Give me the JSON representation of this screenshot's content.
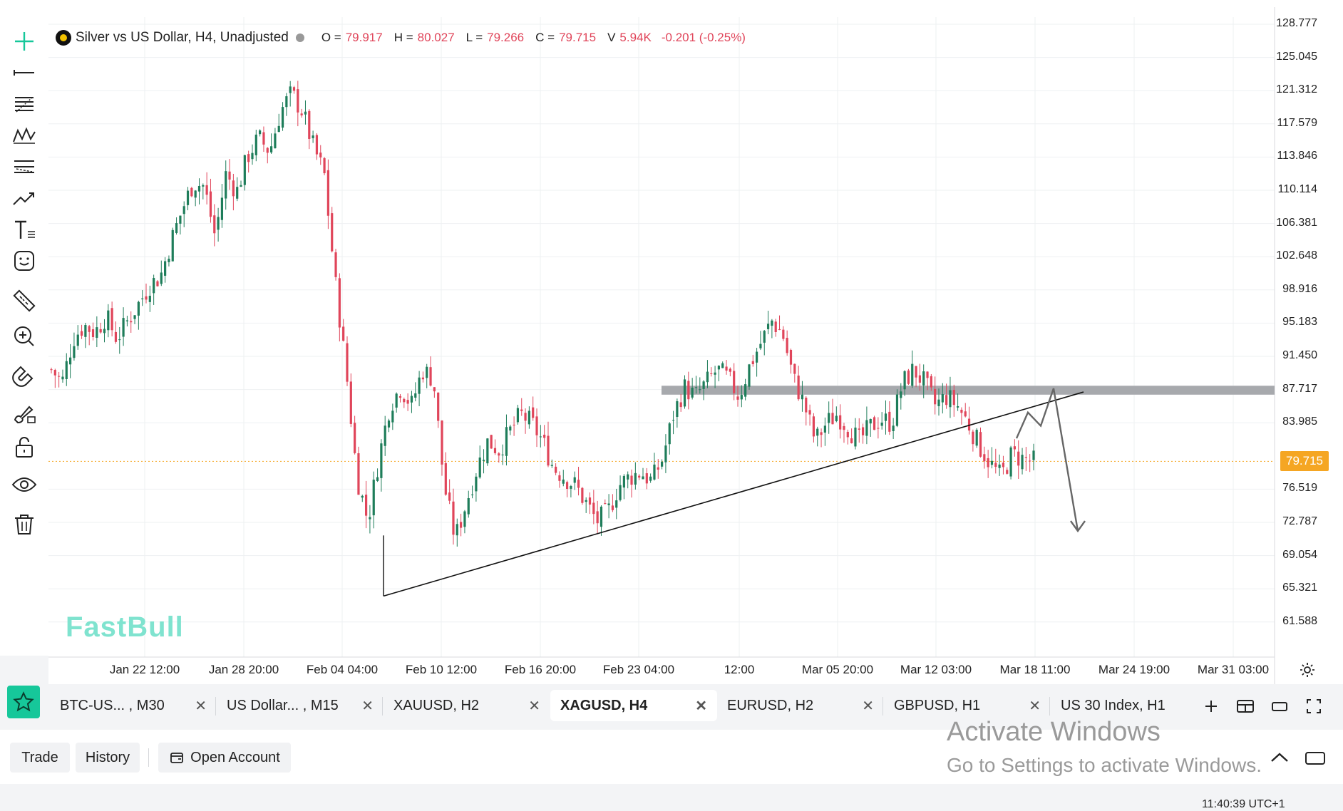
{
  "legend": {
    "symbol": "Silver vs US Dollar, H4, Unadjusted",
    "o_label": "O =",
    "o_value": "79.917",
    "h_label": "H =",
    "h_value": "80.027",
    "l_label": "L =",
    "l_value": "79.266",
    "c_label": "C =",
    "c_value": "79.715",
    "v_label": "V",
    "v_value": "5.94K",
    "change": "-0.201 (-0.25%)"
  },
  "watermark": "FastBull",
  "price_axis": [
    "128.777",
    "125.045",
    "121.312",
    "117.579",
    "113.846",
    "110.114",
    "106.381",
    "102.648",
    "98.916",
    "95.183",
    "91.450",
    "87.717",
    "83.985",
    "76.519",
    "72.787",
    "69.054",
    "65.321",
    "61.588"
  ],
  "current_price": "79.715",
  "time_axis": [
    "Jan 22 12:00",
    "Jan 28 20:00",
    "Feb 04 04:00",
    "Feb 10 12:00",
    "Feb 16 20:00",
    "Feb 23 04:00",
    "12:00",
    "Mar 05 20:00",
    "Mar 12 03:00",
    "Mar 18 11:00",
    "Mar 24 19:00",
    "Mar 31 03:00"
  ],
  "tools": [
    "crosshair-icon",
    "horizontal-line-icon",
    "fib-levels-icon",
    "pattern-icon",
    "parallel-lines-icon",
    "trend-icon",
    "text-icon",
    "emoji-icon",
    "ruler-icon",
    "zoom-in-icon",
    "magnet-icon",
    "brush-lock-icon",
    "lock-icon",
    "eye-icon",
    "trash-icon"
  ],
  "tabs": [
    {
      "label": "BTC-US...  , M30",
      "active": false
    },
    {
      "label": "US Dollar... , M15",
      "active": false
    },
    {
      "label": "XAUUSD, H2",
      "active": false
    },
    {
      "label": "XAGUSD, H4",
      "active": true
    },
    {
      "label": "EURUSD, H2",
      "active": false
    },
    {
      "label": "GBPUSD, H1",
      "active": false
    },
    {
      "label": "US 30 Index, H1",
      "active": false
    }
  ],
  "tab_close": "✕",
  "bottom": {
    "trade": "Trade",
    "history": "History",
    "open_account": "Open Account"
  },
  "activate": {
    "line1": "Activate Windows",
    "line2": "Go to Settings to activate Windows."
  },
  "clock": "11:40:39 UTC+1",
  "colors": {
    "up": "#1e7d5a",
    "down": "#e0455a",
    "accent": "#16c79a",
    "price_tag": "#f5a623",
    "resistance": "#a7a9ad"
  },
  "chart_data": {
    "type": "candlestick",
    "instrument": "Silver vs US Dollar",
    "timeframe": "H4",
    "ylim": [
      61.588,
      128.777
    ],
    "current": 79.715,
    "resistance_zone": [
      87.2,
      88.2
    ],
    "trendline": {
      "from": {
        "x": "Feb 06",
        "y": 64.6
      },
      "to": {
        "x": "Mar 20",
        "y": 87.5
      }
    },
    "projection": [
      82.3,
      85.2,
      83.7,
      87.9,
      71.9
    ],
    "close_path": [
      90.0,
      88.6,
      93.5,
      95.0,
      94.2,
      96.0,
      93.5,
      95.5,
      97.4,
      99.5,
      100.5,
      104.5,
      108.0,
      111.0,
      110.6,
      105.0,
      112.0,
      110.0,
      114.0,
      116.0,
      114.5,
      119.0,
      121.0,
      119.0,
      115.0,
      112.0,
      100.0,
      90.0,
      78.0,
      73.0,
      80.0,
      86.0,
      88.0,
      86.0,
      90.0,
      89.0,
      77.0,
      71.0,
      75.0,
      79.0,
      82.0,
      81.0,
      83.0,
      85.0,
      84.0,
      82.0,
      79.0,
      78.0,
      77.0,
      75.0,
      73.0,
      74.0,
      77.0,
      78.0,
      78.5,
      77.5,
      80.0,
      85.0,
      88.0,
      87.0,
      88.5,
      90.0,
      89.0,
      87.0,
      90.5,
      93.0,
      95.5,
      94.0,
      89.0,
      86.0,
      82.0,
      84.0,
      85.0,
      83.5,
      82.0,
      83.5,
      84.5,
      84.0,
      88.5,
      90.0,
      88.5,
      86.0,
      87.0,
      86.0,
      84.0,
      81.5,
      79.5,
      78.0,
      80.5,
      80.0,
      79.7
    ]
  }
}
